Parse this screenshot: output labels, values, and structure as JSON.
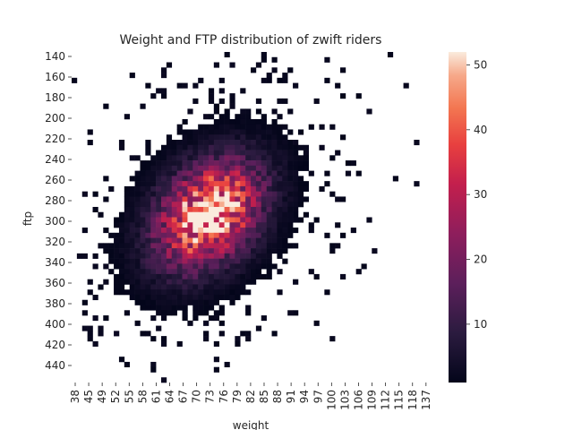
{
  "chart_data": {
    "type": "heatmap",
    "title": "Weight and FTP distribution of zwift riders",
    "xlabel": "weight",
    "ylabel": "ftp",
    "x_tick_labels": [
      "38",
      "45",
      "49",
      "52",
      "55",
      "58",
      "61",
      "64",
      "67",
      "70",
      "73",
      "76",
      "79",
      "82",
      "85",
      "88",
      "91",
      "94",
      "97",
      "100",
      "103",
      "106",
      "109",
      "112",
      "115",
      "118",
      "137"
    ],
    "y_tick_labels": [
      "140",
      "160",
      "180",
      "200",
      "220",
      "240",
      "260",
      "280",
      "300",
      "320",
      "340",
      "360",
      "380",
      "400",
      "420",
      "440"
    ],
    "colorbar": {
      "ticks": [
        10,
        20,
        30,
        40,
        50
      ],
      "min": 1,
      "max": 52
    },
    "grid": false,
    "cell_estimate": {
      "description_of_values": "density estimated from the image; peak near weight 72, ftp 292",
      "peak": {
        "weight": 72,
        "ftp": 292,
        "count": 52
      }
    }
  }
}
